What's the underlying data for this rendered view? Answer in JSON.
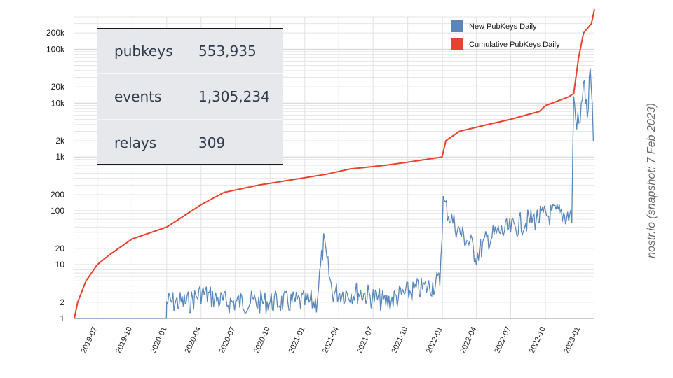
{
  "chart_data": {
    "type": "line",
    "y_scale": "log",
    "ylim": [
      1,
      400000
    ],
    "y_ticks": [
      1,
      2,
      10,
      20,
      100,
      200,
      1000,
      2000,
      10000,
      20000,
      100000,
      200000
    ],
    "y_tick_labels": [
      "1",
      "2",
      "10",
      "20",
      "100",
      "200",
      "1k",
      "2k",
      "10k",
      "20k",
      "100k",
      "200k"
    ],
    "x_range": [
      "2019-05-01",
      "2023-02-08"
    ],
    "x_ticks": [
      "2019-07",
      "2019-10",
      "2020-01",
      "2020-04",
      "2020-07",
      "2020-10",
      "2021-01",
      "2021-04",
      "2021-07",
      "2021-10",
      "2022-01",
      "2022-04",
      "2022-07",
      "2022-10",
      "2023-01"
    ],
    "series": [
      {
        "name": "New PubKeys Daily",
        "color": "#5a87b8",
        "style": "noisy line (approximate envelope)",
        "points": [
          [
            "2019-05-01",
            1
          ],
          [
            "2019-12-31",
            1
          ],
          [
            "2020-01-01",
            2
          ],
          [
            "2020-03-01",
            2
          ],
          [
            "2020-04-01",
            3
          ],
          [
            "2020-06-01",
            2
          ],
          [
            "2020-09-01",
            2
          ],
          [
            "2020-12-01",
            2
          ],
          [
            "2021-02-01",
            2
          ],
          [
            "2021-02-20",
            25
          ],
          [
            "2021-03-15",
            3
          ],
          [
            "2021-06-01",
            3
          ],
          [
            "2021-08-01",
            2
          ],
          [
            "2021-10-01",
            3
          ],
          [
            "2021-12-01",
            4
          ],
          [
            "2021-12-25",
            5
          ],
          [
            "2022-01-03",
            150
          ],
          [
            "2022-01-20",
            80
          ],
          [
            "2022-02-15",
            40
          ],
          [
            "2022-03-15",
            25
          ],
          [
            "2022-04-01",
            15
          ],
          [
            "2022-05-01",
            30
          ],
          [
            "2022-06-01",
            40
          ],
          [
            "2022-07-01",
            45
          ],
          [
            "2022-08-01",
            60
          ],
          [
            "2022-09-01",
            70
          ],
          [
            "2022-10-01",
            80
          ],
          [
            "2022-11-01",
            90
          ],
          [
            "2022-12-10",
            80
          ],
          [
            "2022-12-15",
            15000
          ],
          [
            "2022-12-20",
            5000
          ],
          [
            "2023-01-01",
            4000
          ],
          [
            "2023-01-10",
            30000
          ],
          [
            "2023-01-20",
            5000
          ],
          [
            "2023-01-28",
            40000
          ],
          [
            "2023-02-05",
            2000
          ]
        ]
      },
      {
        "name": "Cumulative PubKeys Daily",
        "color": "#e8412f",
        "style": "line",
        "points": [
          [
            "2019-05-01",
            1
          ],
          [
            "2019-05-10",
            2
          ],
          [
            "2019-06-01",
            5
          ],
          [
            "2019-07-01",
            10
          ],
          [
            "2019-08-01",
            15
          ],
          [
            "2019-10-01",
            30
          ],
          [
            "2020-01-01",
            50
          ],
          [
            "2020-02-15",
            80
          ],
          [
            "2020-04-01",
            130
          ],
          [
            "2020-06-01",
            220
          ],
          [
            "2020-09-01",
            300
          ],
          [
            "2020-12-01",
            380
          ],
          [
            "2021-03-01",
            480
          ],
          [
            "2021-05-01",
            600
          ],
          [
            "2021-08-01",
            700
          ],
          [
            "2021-10-01",
            800
          ],
          [
            "2021-12-31",
            1000
          ],
          [
            "2022-01-10",
            2000
          ],
          [
            "2022-02-15",
            3000
          ],
          [
            "2022-05-01",
            4000
          ],
          [
            "2022-07-01",
            5000
          ],
          [
            "2022-09-15",
            7000
          ],
          [
            "2022-10-01",
            9000
          ],
          [
            "2022-12-01",
            13000
          ],
          [
            "2022-12-15",
            15000
          ],
          [
            "2022-12-28",
            70000
          ],
          [
            "2023-01-10",
            200000
          ],
          [
            "2023-01-31",
            300000
          ],
          [
            "2023-02-08",
            553935
          ]
        ]
      }
    ],
    "legend": {
      "position": "top-right",
      "entries": [
        "New PubKeys Daily",
        "Cumulative PubKeys Daily"
      ]
    },
    "grid": true
  },
  "stats": [
    {
      "label": "pubkeys",
      "value": "553,935"
    },
    {
      "label": "events",
      "value": "1,305,234"
    },
    {
      "label": "relays",
      "value": "309"
    }
  ],
  "snapshot_note": "nostr.io (snapshot: 7 Feb 2023)"
}
